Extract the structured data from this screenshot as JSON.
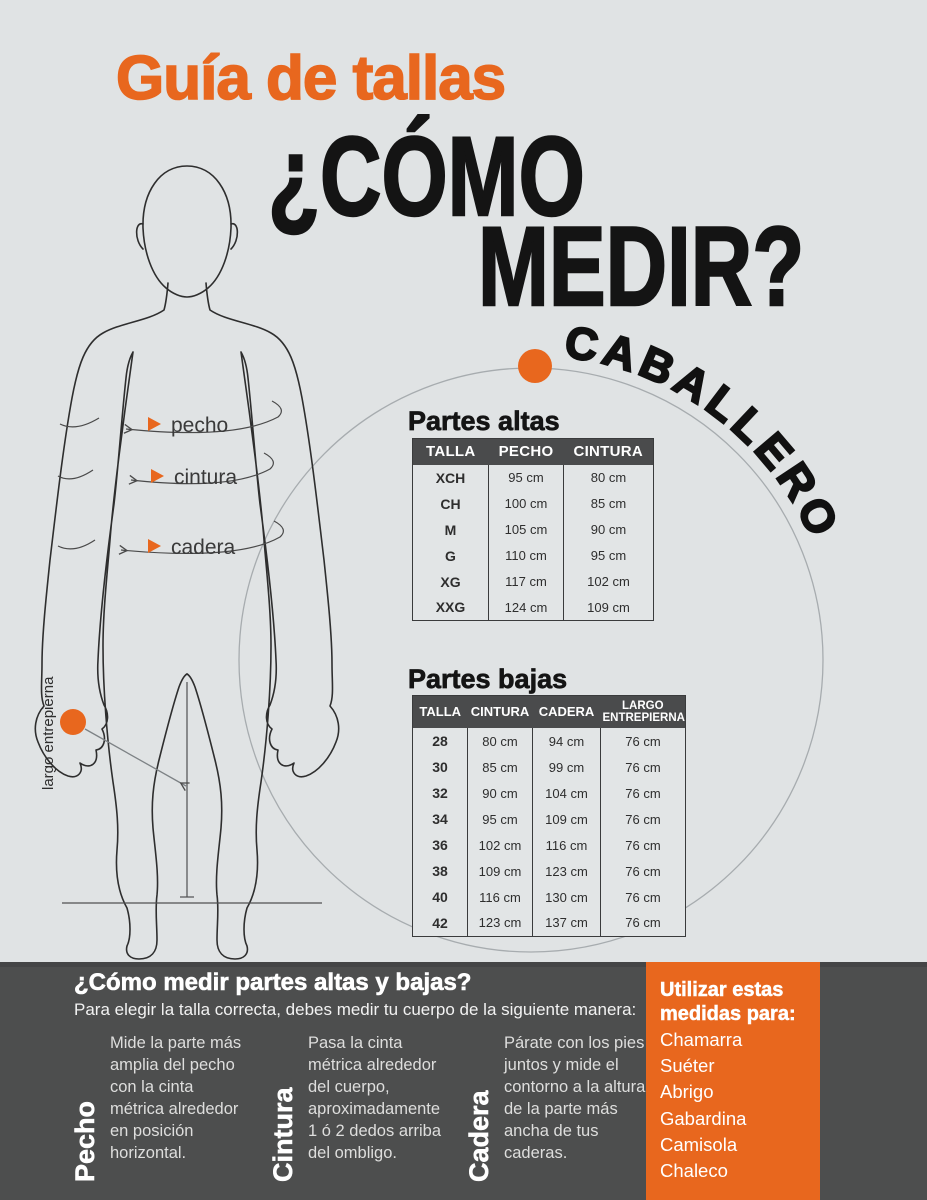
{
  "page": {
    "background": "#e0e3e4",
    "accent_orange": "#e8671e",
    "dark_gray": "#4d4e4e",
    "table_header_gray": "#4a4b4c"
  },
  "header": {
    "title": "Guía de tallas",
    "question_line1": "¿CÓMO",
    "question_line2": "MEDIR?",
    "category": "CABALLERO"
  },
  "figure": {
    "labels": {
      "pecho": "pecho",
      "cintura": "cintura",
      "cadera": "cadera",
      "largo": "largo entrepierna"
    }
  },
  "tables": {
    "altas": {
      "title": "Partes altas",
      "headers": [
        "TALLA",
        "PECHO",
        "CINTURA"
      ],
      "rows": [
        [
          "XCH",
          "95 cm",
          "80 cm"
        ],
        [
          "CH",
          "100 cm",
          "85 cm"
        ],
        [
          "M",
          "105 cm",
          "90 cm"
        ],
        [
          "G",
          "110 cm",
          "95 cm"
        ],
        [
          "XG",
          "117 cm",
          "102 cm"
        ],
        [
          "XXG",
          "124 cm",
          "109 cm"
        ]
      ]
    },
    "bajas": {
      "title": "Partes bajas",
      "headers": [
        "TALLA",
        "CINTURA",
        "CADERA",
        "LARGO ENTREPIERNA"
      ],
      "rows": [
        [
          "28",
          "80 cm",
          "94 cm",
          "76 cm"
        ],
        [
          "30",
          "85 cm",
          "99 cm",
          "76 cm"
        ],
        [
          "32",
          "90 cm",
          "104 cm",
          "76 cm"
        ],
        [
          "34",
          "95 cm",
          "109 cm",
          "76 cm"
        ],
        [
          "36",
          "102 cm",
          "116 cm",
          "76 cm"
        ],
        [
          "38",
          "109 cm",
          "123 cm",
          "76 cm"
        ],
        [
          "40",
          "116 cm",
          "130 cm",
          "76 cm"
        ],
        [
          "42",
          "123 cm",
          "137 cm",
          "76 cm"
        ]
      ]
    }
  },
  "how_to": {
    "title": "¿Cómo medir partes altas y bajas?",
    "subtitle": "Para elegir la talla correcta, debes medir tu cuerpo de la siguiente manera:",
    "items": [
      {
        "label": "Pecho",
        "text": "Mide la parte más amplia del pecho con la cinta métrica alrededor en posición horizontal."
      },
      {
        "label": "Cintura",
        "text": "Pasa la cinta métrica alrededor del cuerpo, aproximadamente 1 ó 2 dedos arriba del ombligo."
      },
      {
        "label": "Cadera",
        "text": "Párate con los pies juntos y mide el contorno a la altura de la parte más ancha de tus caderas."
      }
    ]
  },
  "usage": {
    "title": "Utilizar estas medidas para:",
    "items": [
      "Chamarra",
      "Suéter",
      "Abrigo",
      "Gabardina",
      "Camisola",
      "Chaleco"
    ]
  }
}
